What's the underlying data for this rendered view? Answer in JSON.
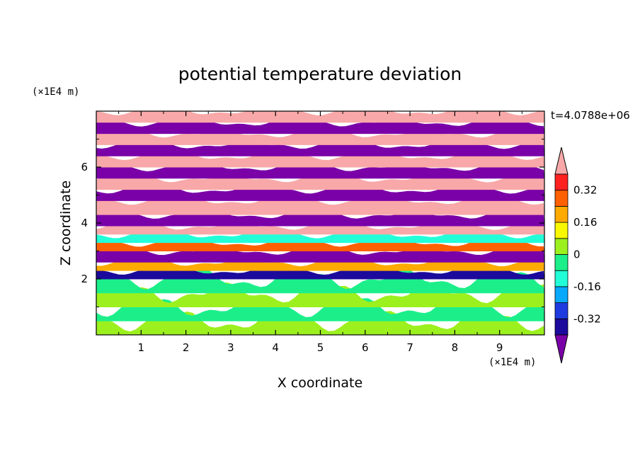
{
  "chart_data": {
    "type": "heatmap",
    "title": "potential temperature deviation",
    "time_label": "t=4.0788e+06",
    "xlabel": "X coordinate",
    "ylabel": "Z coordinate",
    "x_unit": "(×1E4 m)",
    "y_unit": "(×1E4 m)",
    "x_ticks": [
      "1",
      "2",
      "3",
      "4",
      "5",
      "6",
      "7",
      "8",
      "9"
    ],
    "y_ticks": [
      "2",
      "4",
      "6"
    ],
    "xlim": [
      0,
      10
    ],
    "ylim": [
      0,
      8
    ],
    "colorbar": {
      "tick_labels": [
        "0.32",
        "0.16",
        "0",
        "-0.16",
        "-0.32"
      ],
      "tick_values": [
        0.32,
        0.16,
        0,
        -0.16,
        -0.32
      ],
      "levels": [
        -0.4,
        -0.32,
        -0.24,
        -0.16,
        -0.08,
        0,
        0.08,
        0.16,
        0.24,
        0.32,
        0.4
      ],
      "colors": [
        "#1c0a9c",
        "#1e3be0",
        "#08a8ff",
        "#22ffd8",
        "#1cef8a",
        "#9cf01e",
        "#f8f800",
        "#ffaa00",
        "#ff6000",
        "#ff2020"
      ],
      "under_color": "#7a00a8",
      "over_color": "#f8a8a8",
      "extend": "both"
    },
    "layers": [
      {
        "z": [
          0,
          0.5
        ],
        "value": 0.04
      },
      {
        "z": [
          0.5,
          1.0
        ],
        "value": -0.02
      },
      {
        "z": [
          1.0,
          1.5
        ],
        "value": 0.04
      },
      {
        "z": [
          1.5,
          2.0
        ],
        "value": -0.02
      },
      {
        "z": [
          2.0,
          2.3
        ],
        "value": -0.35
      },
      {
        "z": [
          2.3,
          2.6
        ],
        "value": 0.2
      },
      {
        "z": [
          2.6,
          3.0
        ],
        "value": -0.45
      },
      {
        "z": [
          3.0,
          3.3
        ],
        "value": 0.3
      },
      {
        "z": [
          3.3,
          3.6
        ],
        "value": -0.1
      },
      {
        "z": [
          3.6,
          3.9
        ],
        "value": 0.42
      },
      {
        "z": [
          3.9,
          4.3
        ],
        "value": -0.45
      },
      {
        "z": [
          4.3,
          4.8
        ],
        "value": 0.45
      },
      {
        "z": [
          4.8,
          5.2
        ],
        "value": -0.45
      },
      {
        "z": [
          5.2,
          5.6
        ],
        "value": 0.45
      },
      {
        "z": [
          5.6,
          6.0
        ],
        "value": -0.45
      },
      {
        "z": [
          6.0,
          6.4
        ],
        "value": 0.45
      },
      {
        "z": [
          6.4,
          6.8
        ],
        "value": -0.45
      },
      {
        "z": [
          6.8,
          7.2
        ],
        "value": 0.45
      },
      {
        "z": [
          7.2,
          7.6
        ],
        "value": -0.45
      },
      {
        "z": [
          7.6,
          8.0
        ],
        "value": 0.45
      }
    ]
  }
}
